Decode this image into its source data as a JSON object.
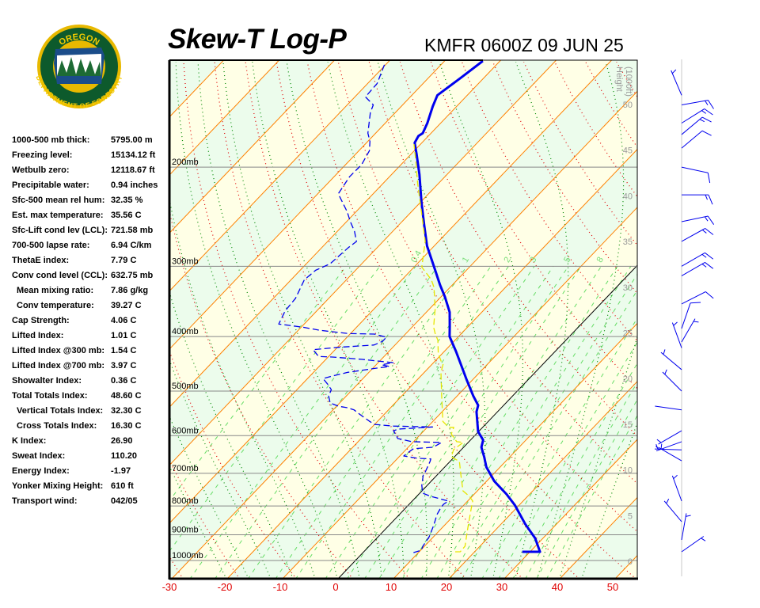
{
  "header": {
    "title": "Skew-T Log-P",
    "station_time": "KMFR 0600Z 09 JUN 25"
  },
  "logo": {
    "top": "OREGON",
    "bottom": "DEPARTMENT OF FORESTRY"
  },
  "stats": [
    {
      "label": "1000-500 mb thick:",
      "value": "5795.00 m"
    },
    {
      "label": "Freezing level:",
      "value": "15134.12 ft"
    },
    {
      "label": "Wetbulb zero:",
      "value": "12118.67 ft"
    },
    {
      "label": "Precipitable water:",
      "value": "0.94 inches"
    },
    {
      "label": "Sfc-500 mean rel hum:",
      "value": "32.35 %"
    },
    {
      "label": "Est. max temperature:",
      "value": "35.56 C"
    },
    {
      "label": "Sfc-Lift cond lev (LCL):",
      "value": "721.58 mb"
    },
    {
      "label": "700-500 lapse rate:",
      "value": "6.94 C/km"
    },
    {
      "label": "ThetaE index:",
      "value": "7.79 C"
    },
    {
      "label": "Conv cond level (CCL):",
      "value": "632.75 mb"
    },
    {
      "label": "Mean mixing ratio:",
      "value": "7.86 g/kg",
      "indent": true
    },
    {
      "label": "Conv temperature:",
      "value": "39.27 C",
      "indent": true
    },
    {
      "label": "Cap Strength:",
      "value": "4.06 C"
    },
    {
      "label": "Lifted Index:",
      "value": "1.01 C"
    },
    {
      "label": "Lifted Index @300 mb:",
      "value": "1.54 C"
    },
    {
      "label": "Lifted Index @700 mb:",
      "value": "3.97 C"
    },
    {
      "label": "Showalter Index:",
      "value": "0.36 C"
    },
    {
      "label": "Total Totals Index:",
      "value": "48.60 C"
    },
    {
      "label": "Vertical Totals Index:",
      "value": "32.30 C",
      "indent": true
    },
    {
      "label": "Cross Totals Index:",
      "value": "16.30 C",
      "indent": true
    },
    {
      "label": "K Index:",
      "value": "26.90"
    },
    {
      "label": "Sweat Index:",
      "value": "110.20"
    },
    {
      "label": "Energy Index:",
      "value": "-1.97"
    },
    {
      "label": "Yonker Mixing Height:",
      "value": "610 ft"
    },
    {
      "label": "Transport wind:",
      "value": "042/05"
    }
  ],
  "chart_data": {
    "type": "line",
    "title": "Skew-T Log-P",
    "x_axis": {
      "unit": "C",
      "ticks": [
        -30,
        -20,
        -10,
        0,
        10,
        20,
        30,
        40,
        50
      ],
      "tick_labels": [
        "-30",
        "-20",
        "-10",
        "0",
        "10",
        "20",
        "30",
        "40",
        "50"
      ],
      "skew": true
    },
    "y_axis": {
      "scale": "log",
      "range_mb": [
        1074,
        129
      ],
      "ticks": [
        200,
        300,
        400,
        500,
        600,
        700,
        800,
        900,
        1000
      ],
      "tick_labels": [
        "200mb",
        "300mb",
        "400mb",
        "500mb",
        "600mb",
        "700mb",
        "800mb",
        "900mb",
        "1000mb"
      ]
    },
    "height_axis": {
      "label_line1": "Height",
      "label_line2": "(1000ft)",
      "ticks": [
        0,
        5,
        10,
        15,
        20,
        25,
        30,
        35,
        40,
        45,
        50
      ],
      "tick_labels": [
        "0",
        "5",
        "10",
        "15",
        "20",
        "25",
        "30",
        "35",
        "40",
        "45",
        "50"
      ]
    },
    "mixing_ratio_labels": [
      "0.4",
      "1",
      "2",
      "3",
      "5",
      "8"
    ],
    "mixing_ratio_values": [
      0.4,
      1,
      2,
      3,
      5,
      8
    ],
    "grid": true,
    "colors": {
      "isotherm": "#ff8000",
      "zero_isotherm": "#000000",
      "dry_adiabat": "#e00000",
      "moist_adiabat": "#008800",
      "mixing_ratio": "#66dd66",
      "band_a": "#ffffe6",
      "band_b": "#ecfcec"
    },
    "series": [
      {
        "key": "temperature",
        "color": "#0000ee",
        "style": "solid-thick",
        "points_p_T": [
          [
            965,
            28.6
          ],
          [
            965,
            31.8
          ],
          [
            913,
            28.6
          ],
          [
            862,
            24.4
          ],
          [
            797,
            19.2
          ],
          [
            762,
            15.8
          ],
          [
            723,
            11.4
          ],
          [
            682,
            7.5
          ],
          [
            656,
            5.5
          ],
          [
            629,
            3.2
          ],
          [
            611,
            2.3
          ],
          [
            590,
            -0.1
          ],
          [
            544,
            -3.8
          ],
          [
            530,
            -4.6
          ],
          [
            510,
            -7.1
          ],
          [
            478,
            -11.0
          ],
          [
            455,
            -13.9
          ],
          [
            425,
            -17.9
          ],
          [
            400,
            -21.6
          ],
          [
            383,
            -23.4
          ],
          [
            362,
            -25.8
          ],
          [
            340,
            -29.3
          ],
          [
            324,
            -32.2
          ],
          [
            304,
            -35.8
          ],
          [
            276,
            -41.3
          ],
          [
            254,
            -45.3
          ],
          [
            231,
            -49.8
          ],
          [
            206,
            -55.0
          ],
          [
            190,
            -58.9
          ],
          [
            181,
            -61.3
          ],
          [
            176,
            -61.8
          ],
          [
            174,
            -61.5
          ],
          [
            167,
            -62.4
          ],
          [
            156,
            -64.3
          ],
          [
            149,
            -65.4
          ],
          [
            139,
            -64.2
          ],
          [
            129.5,
            -63.1
          ]
        ]
      },
      {
        "key": "dewpoint",
        "color": "#0000ee",
        "style": "dashed",
        "points_p_T": [
          [
            968,
            9.1
          ],
          [
            959,
            10.1
          ],
          [
            943,
            9.7
          ],
          [
            907,
            9.2
          ],
          [
            864,
            8.0
          ],
          [
            829,
            6.8
          ],
          [
            810,
            6.4
          ],
          [
            795,
            6.2
          ],
          [
            784,
            6.5
          ],
          [
            769,
            2.5
          ],
          [
            759,
            0.5
          ],
          [
            735,
            -1.0
          ],
          [
            705,
            -2.5
          ],
          [
            698,
            -2.6
          ],
          [
            667,
            -3.6
          ],
          [
            660,
            -3.9
          ],
          [
            658,
            -6.5
          ],
          [
            652,
            -9.3
          ],
          [
            643,
            -9.1
          ],
          [
            633,
            -8.8
          ],
          [
            629,
            -5.5
          ],
          [
            617,
            -4.8
          ],
          [
            615,
            -10.3
          ],
          [
            607,
            -13.4
          ],
          [
            588,
            -15.5
          ],
          [
            584,
            -14.9
          ],
          [
            579,
            -9.1
          ],
          [
            577,
            -16.3
          ],
          [
            573,
            -20.0
          ],
          [
            566,
            -21.4
          ],
          [
            551,
            -24.2
          ],
          [
            540,
            -26.2
          ],
          [
            535,
            -27.9
          ],
          [
            532,
            -29.6
          ],
          [
            525,
            -31.7
          ],
          [
            510,
            -33.2
          ],
          [
            497,
            -33.8
          ],
          [
            486,
            -35.4
          ],
          [
            475,
            -37.2
          ],
          [
            470,
            -35.9
          ],
          [
            463,
            -33.8
          ],
          [
            455,
            -29.2
          ],
          [
            452,
            -27.3
          ],
          [
            449,
            -29.0
          ],
          [
            445,
            -27.3
          ],
          [
            443,
            -29.4
          ],
          [
            439,
            -33.5
          ],
          [
            435,
            -39.2
          ],
          [
            434,
            -41.8
          ],
          [
            422,
            -44.0
          ],
          [
            418,
            -39.8
          ],
          [
            414,
            -33.8
          ],
          [
            408,
            -32.9
          ],
          [
            401,
            -32.9
          ],
          [
            396,
            -35.6
          ],
          [
            395,
            -40.4
          ],
          [
            390,
            -46.0
          ],
          [
            385,
            -49.7
          ],
          [
            380,
            -54.6
          ],
          [
            360,
            -55.7
          ],
          [
            342,
            -56.0
          ],
          [
            317,
            -57.6
          ],
          [
            305,
            -57.2
          ],
          [
            297,
            -55.7
          ],
          [
            278,
            -55.2
          ],
          [
            271,
            -54.8
          ],
          [
            260,
            -56.9
          ],
          [
            250,
            -59.3
          ],
          [
            240,
            -61.6
          ],
          [
            223,
            -66.3
          ],
          [
            208,
            -67.2
          ],
          [
            198,
            -67.1
          ],
          [
            187,
            -68.1
          ],
          [
            180,
            -69.6
          ],
          [
            174,
            -71.4
          ],
          [
            160,
            -74.5
          ],
          [
            155,
            -75.3
          ],
          [
            150,
            -78.1
          ],
          [
            142,
            -78.3
          ],
          [
            130,
            -80.5
          ]
        ]
      },
      {
        "key": "yellow-trace",
        "color": "#e6e600",
        "style": "dashed",
        "points_p_T": [
          [
            965,
            16.5
          ],
          [
            965,
            17.4
          ],
          [
            943,
            17.3
          ],
          [
            876,
            14.7
          ],
          [
            810,
            12.0
          ],
          [
            784,
            10.9
          ],
          [
            769,
            9.5
          ],
          [
            752,
            7.4
          ],
          [
            705,
            4.3
          ],
          [
            667,
            1.7
          ],
          [
            654,
            -0.6
          ],
          [
            635,
            -1.4
          ],
          [
            617,
            -0.9
          ],
          [
            615,
            -2.2
          ],
          [
            596,
            -4.5
          ],
          [
            580,
            -5.2
          ],
          [
            580,
            -6.1
          ],
          [
            566,
            -8.2
          ],
          [
            510,
            -12.8
          ],
          [
            463,
            -17.0
          ],
          [
            448,
            -18.0
          ],
          [
            443,
            -18.8
          ],
          [
            429,
            -20.7
          ],
          [
            406,
            -23.1
          ],
          [
            396,
            -24.6
          ],
          [
            385,
            -26.1
          ],
          [
            357,
            -29.0
          ],
          [
            327,
            -32.9
          ],
          [
            317,
            -34.7
          ],
          [
            301,
            -38.6
          ],
          [
            271,
            -42.4
          ],
          [
            240,
            -48.2
          ],
          [
            214,
            -53.7
          ],
          [
            194,
            -58.2
          ],
          [
            182,
            -61.2
          ]
        ]
      }
    ],
    "winds": [
      {
        "p": 149,
        "dir": 337,
        "kt": 5
      },
      {
        "p": 155,
        "dir": 80,
        "kt": 15
      },
      {
        "p": 167,
        "dir": 58,
        "kt": 15
      },
      {
        "p": 175,
        "dir": 50,
        "kt": 15
      },
      {
        "p": 185,
        "dir": 50,
        "kt": 10
      },
      {
        "p": 200,
        "dir": 102,
        "kt": 10
      },
      {
        "p": 224,
        "dir": 90,
        "kt": 15
      },
      {
        "p": 250,
        "dir": 78,
        "kt": 15
      },
      {
        "p": 271,
        "dir": 61,
        "kt": 15
      },
      {
        "p": 300,
        "dir": 60,
        "kt": 15
      },
      {
        "p": 312,
        "dir": 60,
        "kt": 15
      },
      {
        "p": 350,
        "dir": 63,
        "kt": 10
      },
      {
        "p": 387,
        "dir": 19,
        "kt": 10
      },
      {
        "p": 409,
        "dir": 30,
        "kt": 5
      },
      {
        "p": 419,
        "dir": 340,
        "kt": 5
      },
      {
        "p": 458,
        "dir": 310,
        "kt": 5
      },
      {
        "p": 500,
        "dir": 315,
        "kt": 5
      },
      {
        "p": 540,
        "dir": 278,
        "kt": 2
      },
      {
        "p": 588,
        "dir": 240,
        "kt": 5
      },
      {
        "p": 615,
        "dir": 250,
        "kt": 5
      },
      {
        "p": 636,
        "dir": 272,
        "kt": 5
      },
      {
        "p": 665,
        "dir": 300,
        "kt": 5
      },
      {
        "p": 784,
        "dir": 340,
        "kt": 5
      },
      {
        "p": 853,
        "dir": 320,
        "kt": 5
      },
      {
        "p": 919,
        "dir": 10,
        "kt": 5
      },
      {
        "p": 965,
        "dir": 55,
        "kt": 5
      }
    ]
  }
}
